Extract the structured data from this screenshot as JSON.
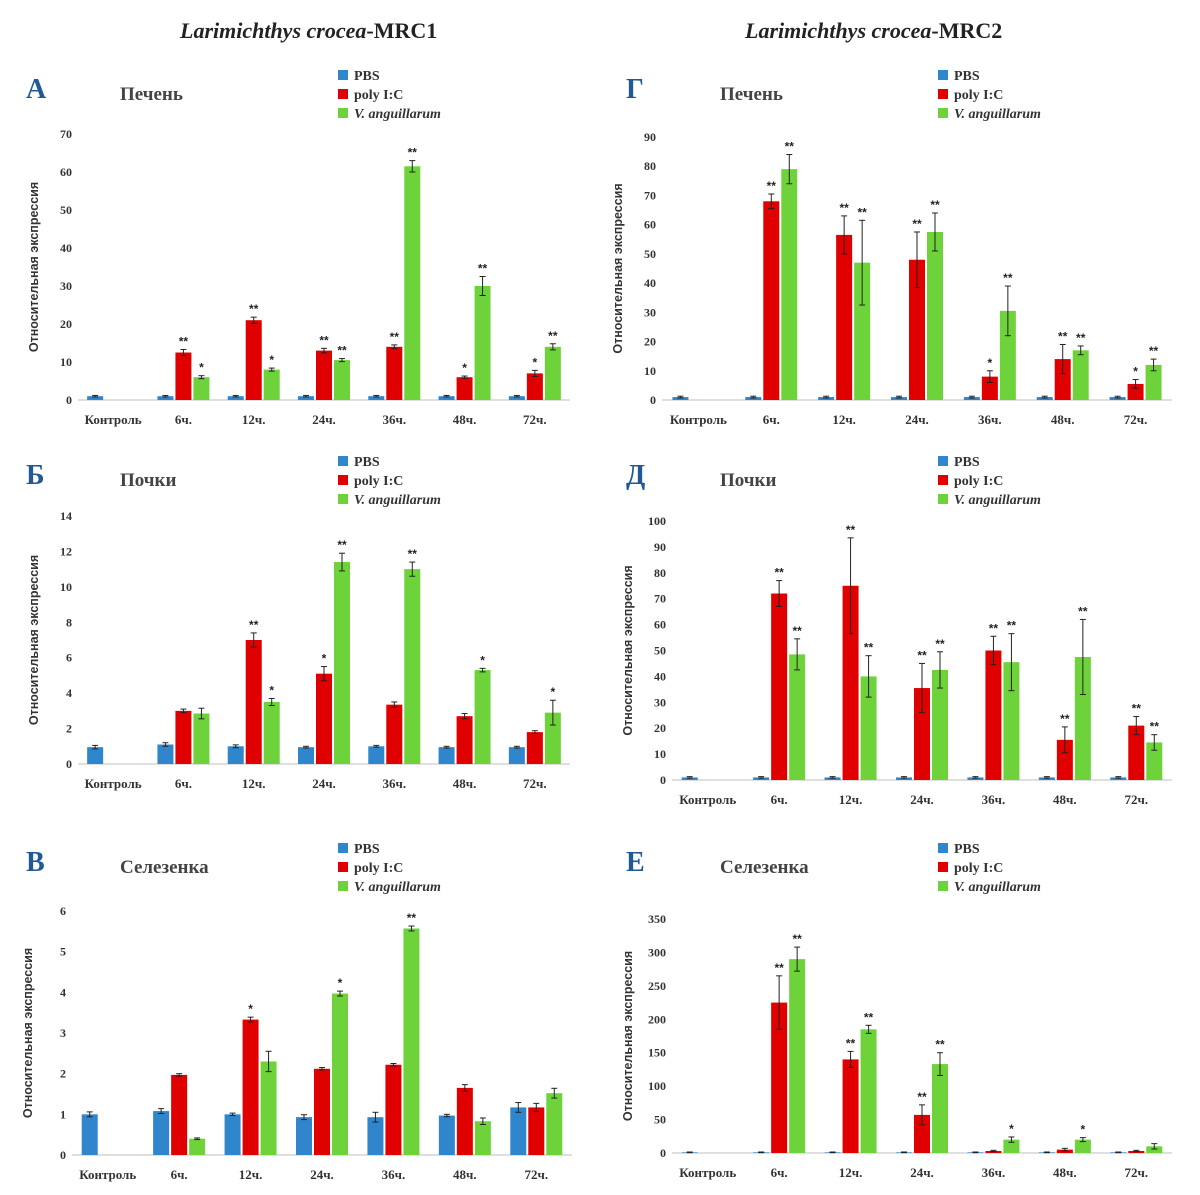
{
  "header": {
    "left_title_species": "Larimichthys crocea",
    "left_title_gene": "-MRC1",
    "right_title_species": "Larimichthys crocea",
    "right_title_gene": "-MRC2"
  },
  "colors": {
    "PBS": "#2f86cc",
    "poly I:C": "#e00000",
    "V. anguillarum": "#6ed33a"
  },
  "chart_data": [
    {
      "type": "bar",
      "letter": "А",
      "title": "Печень",
      "ylabel": "Относительная экспрессия",
      "categories": [
        "Контроль",
        "6ч.",
        "12ч.",
        "24ч.",
        "36ч.",
        "48ч.",
        "72ч."
      ],
      "ylim": [
        0,
        70
      ],
      "yticks": [
        0,
        10,
        20,
        30,
        40,
        50,
        60,
        70
      ],
      "series": [
        {
          "name": "PBS",
          "values": [
            1,
            1,
            1,
            1,
            1,
            1,
            1
          ],
          "errors": [
            0.2,
            0.2,
            0.2,
            0.2,
            0.2,
            0.2,
            0.2
          ],
          "stars": [
            "",
            "",
            "",
            "",
            "",
            "",
            ""
          ]
        },
        {
          "name": "poly I:C",
          "values": [
            null,
            12.5,
            21,
            13,
            14,
            6,
            7
          ],
          "errors": [
            null,
            0.8,
            0.8,
            0.6,
            0.5,
            0.3,
            0.8
          ],
          "stars": [
            "",
            "**",
            "**",
            "**",
            "**",
            "*",
            "*"
          ]
        },
        {
          "name": "V. anguillarum",
          "values": [
            null,
            6,
            8,
            10.5,
            61.5,
            30,
            14
          ],
          "errors": [
            null,
            0.4,
            0.4,
            0.4,
            1.5,
            2.5,
            0.8
          ],
          "stars": [
            "",
            "*",
            "*",
            "**",
            "**",
            "**",
            "**"
          ]
        }
      ]
    },
    {
      "type": "bar",
      "letter": "Б",
      "title": "Почки",
      "ylabel": "Относительная экспрессия",
      "categories": [
        "Контроль",
        "6ч.",
        "12ч.",
        "24ч.",
        "36ч.",
        "48ч.",
        "72ч."
      ],
      "ylim": [
        0,
        14
      ],
      "yticks": [
        0,
        2,
        4,
        6,
        8,
        10,
        12,
        14
      ],
      "series": [
        {
          "name": "PBS",
          "values": [
            0.95,
            1.1,
            1,
            0.95,
            1,
            0.95,
            0.95
          ],
          "errors": [
            0.1,
            0.1,
            0.08,
            0.05,
            0.05,
            0.05,
            0.05
          ],
          "stars": [
            "",
            "",
            "",
            "",
            "",
            "",
            ""
          ]
        },
        {
          "name": "poly I:C",
          "values": [
            null,
            3,
            7,
            5.1,
            3.35,
            2.7,
            1.8
          ],
          "errors": [
            null,
            0.1,
            0.4,
            0.4,
            0.15,
            0.15,
            0.08
          ],
          "stars": [
            "",
            "",
            "**",
            "*",
            "",
            "",
            ""
          ]
        },
        {
          "name": "V. anguillarum",
          "values": [
            null,
            2.85,
            3.5,
            11.4,
            11,
            5.3,
            2.9
          ],
          "errors": [
            null,
            0.3,
            0.2,
            0.5,
            0.4,
            0.1,
            0.7
          ],
          "stars": [
            "",
            "",
            "*",
            "**",
            "**",
            "*",
            "*"
          ]
        }
      ]
    },
    {
      "type": "bar",
      "letter": "В",
      "title": "Селезенка",
      "ylabel": "Относительная экспрессия",
      "categories": [
        "Контроль",
        "6ч.",
        "12ч.",
        "24ч.",
        "36ч.",
        "48ч.",
        "72ч."
      ],
      "ylim": [
        0,
        6
      ],
      "yticks": [
        0,
        1,
        2,
        3,
        4,
        5,
        6
      ],
      "series": [
        {
          "name": "PBS",
          "values": [
            1,
            1.08,
            1,
            0.93,
            0.93,
            0.97,
            1.17
          ],
          "errors": [
            0.06,
            0.06,
            0.03,
            0.06,
            0.12,
            0.03,
            0.12
          ],
          "stars": [
            "",
            "",
            "",
            "",
            "",
            "",
            ""
          ]
        },
        {
          "name": "poly I:C",
          "values": [
            null,
            1.97,
            3.33,
            2.12,
            2.22,
            1.65,
            1.17
          ],
          "errors": [
            null,
            0.03,
            0.06,
            0.03,
            0.03,
            0.08,
            0.1
          ],
          "stars": [
            "",
            "",
            "*",
            "",
            "",
            "",
            ""
          ]
        },
        {
          "name": "V. anguillarum",
          "values": [
            null,
            0.4,
            2.3,
            3.97,
            5.57,
            0.83,
            1.52
          ],
          "errors": [
            null,
            0.02,
            0.25,
            0.06,
            0.06,
            0.08,
            0.12
          ],
          "stars": [
            "",
            "",
            "",
            "*",
            "**",
            "",
            ""
          ]
        }
      ]
    },
    {
      "type": "bar",
      "letter": "Г",
      "title": "Печень",
      "ylabel": "Относительная экспрессия",
      "categories": [
        "Контроль",
        "6ч.",
        "12ч.",
        "24ч.",
        "36ч.",
        "48ч.",
        "72ч."
      ],
      "ylim": [
        0,
        90
      ],
      "yticks": [
        0,
        10,
        20,
        30,
        40,
        50,
        60,
        70,
        80,
        90
      ],
      "series": [
        {
          "name": "PBS",
          "values": [
            1,
            1,
            1,
            1,
            1,
            1,
            1
          ],
          "errors": [
            0.3,
            0.3,
            0.3,
            0.3,
            0.3,
            0.3,
            0.3
          ],
          "stars": [
            "",
            "",
            "",
            "",
            "",
            "",
            ""
          ]
        },
        {
          "name": "poly I:C",
          "values": [
            null,
            68,
            56.5,
            48,
            8,
            14,
            5.5
          ],
          "errors": [
            null,
            2.5,
            6.5,
            9.5,
            2,
            5,
            1.5
          ],
          "stars": [
            "",
            "**",
            "**",
            "**",
            "*",
            "**",
            "*"
          ]
        },
        {
          "name": "V. anguillarum",
          "values": [
            null,
            79,
            47,
            57.5,
            30.5,
            17,
            12
          ],
          "errors": [
            null,
            5,
            14.5,
            6.5,
            8.5,
            1.5,
            2
          ],
          "stars": [
            "",
            "**",
            "**",
            "**",
            "**",
            "**",
            "**"
          ]
        }
      ]
    },
    {
      "type": "bar",
      "letter": "Д",
      "title": "Почки",
      "ylabel": "Относительная экспрессия",
      "categories": [
        "Контроль",
        "6ч.",
        "12ч.",
        "24ч.",
        "36ч.",
        "48ч.",
        "72ч."
      ],
      "ylim": [
        0,
        100
      ],
      "yticks": [
        0,
        10,
        20,
        30,
        40,
        50,
        60,
        70,
        80,
        90,
        100
      ],
      "series": [
        {
          "name": "PBS",
          "values": [
            1,
            1,
            1,
            1,
            1,
            1,
            1
          ],
          "errors": [
            0.3,
            0.3,
            0.3,
            0.3,
            0.3,
            0.3,
            0.3
          ],
          "stars": [
            "",
            "",
            "",
            "",
            "",
            "",
            ""
          ]
        },
        {
          "name": "poly I:C",
          "values": [
            null,
            72,
            75,
            35.5,
            50,
            15.5,
            21
          ],
          "errors": [
            null,
            5,
            18.5,
            9.5,
            5.5,
            5,
            3.5
          ],
          "stars": [
            "",
            "**",
            "**",
            "**",
            "**",
            "**",
            "**"
          ]
        },
        {
          "name": "V. anguillarum",
          "values": [
            null,
            48.5,
            40,
            42.5,
            45.5,
            47.5,
            14.5
          ],
          "errors": [
            null,
            6,
            8,
            7,
            11,
            14.5,
            3
          ],
          "stars": [
            "",
            "**",
            "**",
            "**",
            "**",
            "**",
            "**"
          ]
        }
      ]
    },
    {
      "type": "bar",
      "letter": "Е",
      "title": "Селезенка",
      "ylabel": "Относительная экспрессия",
      "categories": [
        "Контроль",
        "6ч.",
        "12ч.",
        "24ч.",
        "36ч.",
        "48ч.",
        "72ч."
      ],
      "ylim": [
        0,
        350
      ],
      "yticks": [
        0,
        50,
        100,
        150,
        200,
        250,
        300,
        350
      ],
      "series": [
        {
          "name": "PBS",
          "values": [
            1,
            1,
            1,
            1,
            1,
            1,
            1
          ],
          "errors": [
            0.5,
            0.5,
            0.5,
            0.5,
            0.5,
            0.5,
            0.5
          ],
          "stars": [
            "",
            "",
            "",
            "",
            "",
            "",
            ""
          ]
        },
        {
          "name": "poly I:C",
          "values": [
            null,
            225,
            140,
            57,
            3,
            5,
            3
          ],
          "errors": [
            null,
            40,
            12,
            15,
            1,
            2,
            1
          ],
          "stars": [
            "",
            "**",
            "**",
            "**",
            "",
            "",
            ""
          ]
        },
        {
          "name": "V. anguillarum",
          "values": [
            null,
            290,
            185,
            133,
            20,
            20,
            10
          ],
          "errors": [
            null,
            18,
            6,
            17,
            4,
            3,
            4
          ],
          "stars": [
            "",
            "**",
            "**",
            "**",
            "*",
            "*",
            ""
          ]
        }
      ]
    }
  ]
}
